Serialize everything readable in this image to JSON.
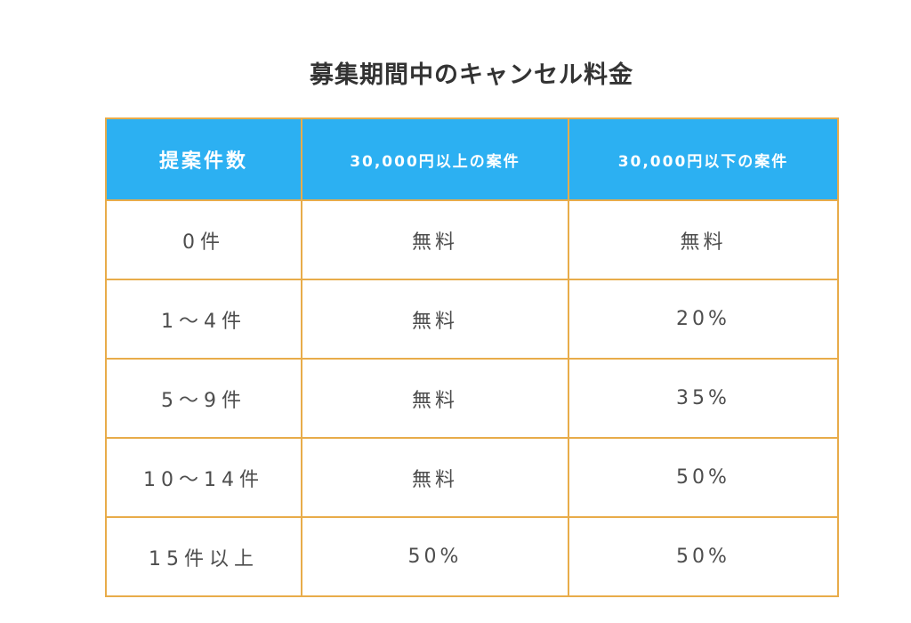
{
  "title": "募集期間中のキャンセル料金",
  "table": {
    "headers": [
      "提案件数",
      "30,000円以上の案件",
      "30,000円以下の案件"
    ],
    "rows": [
      {
        "count": "0件",
        "over": "無料",
        "under": "無料"
      },
      {
        "count": "1～4件",
        "over": "無料",
        "under": "20%"
      },
      {
        "count": "5～9件",
        "over": "無料",
        "under": "35%"
      },
      {
        "count": "10～14件",
        "over": "無料",
        "under": "50%"
      },
      {
        "count": "15件以上",
        "over": "50%",
        "under": "50%"
      }
    ]
  },
  "colors": {
    "header_background": "#2cb0f2",
    "header_text": "#ffffff",
    "border": "#e8ac4a",
    "title_text": "#333333",
    "cell_text": "#4d4d4d"
  }
}
